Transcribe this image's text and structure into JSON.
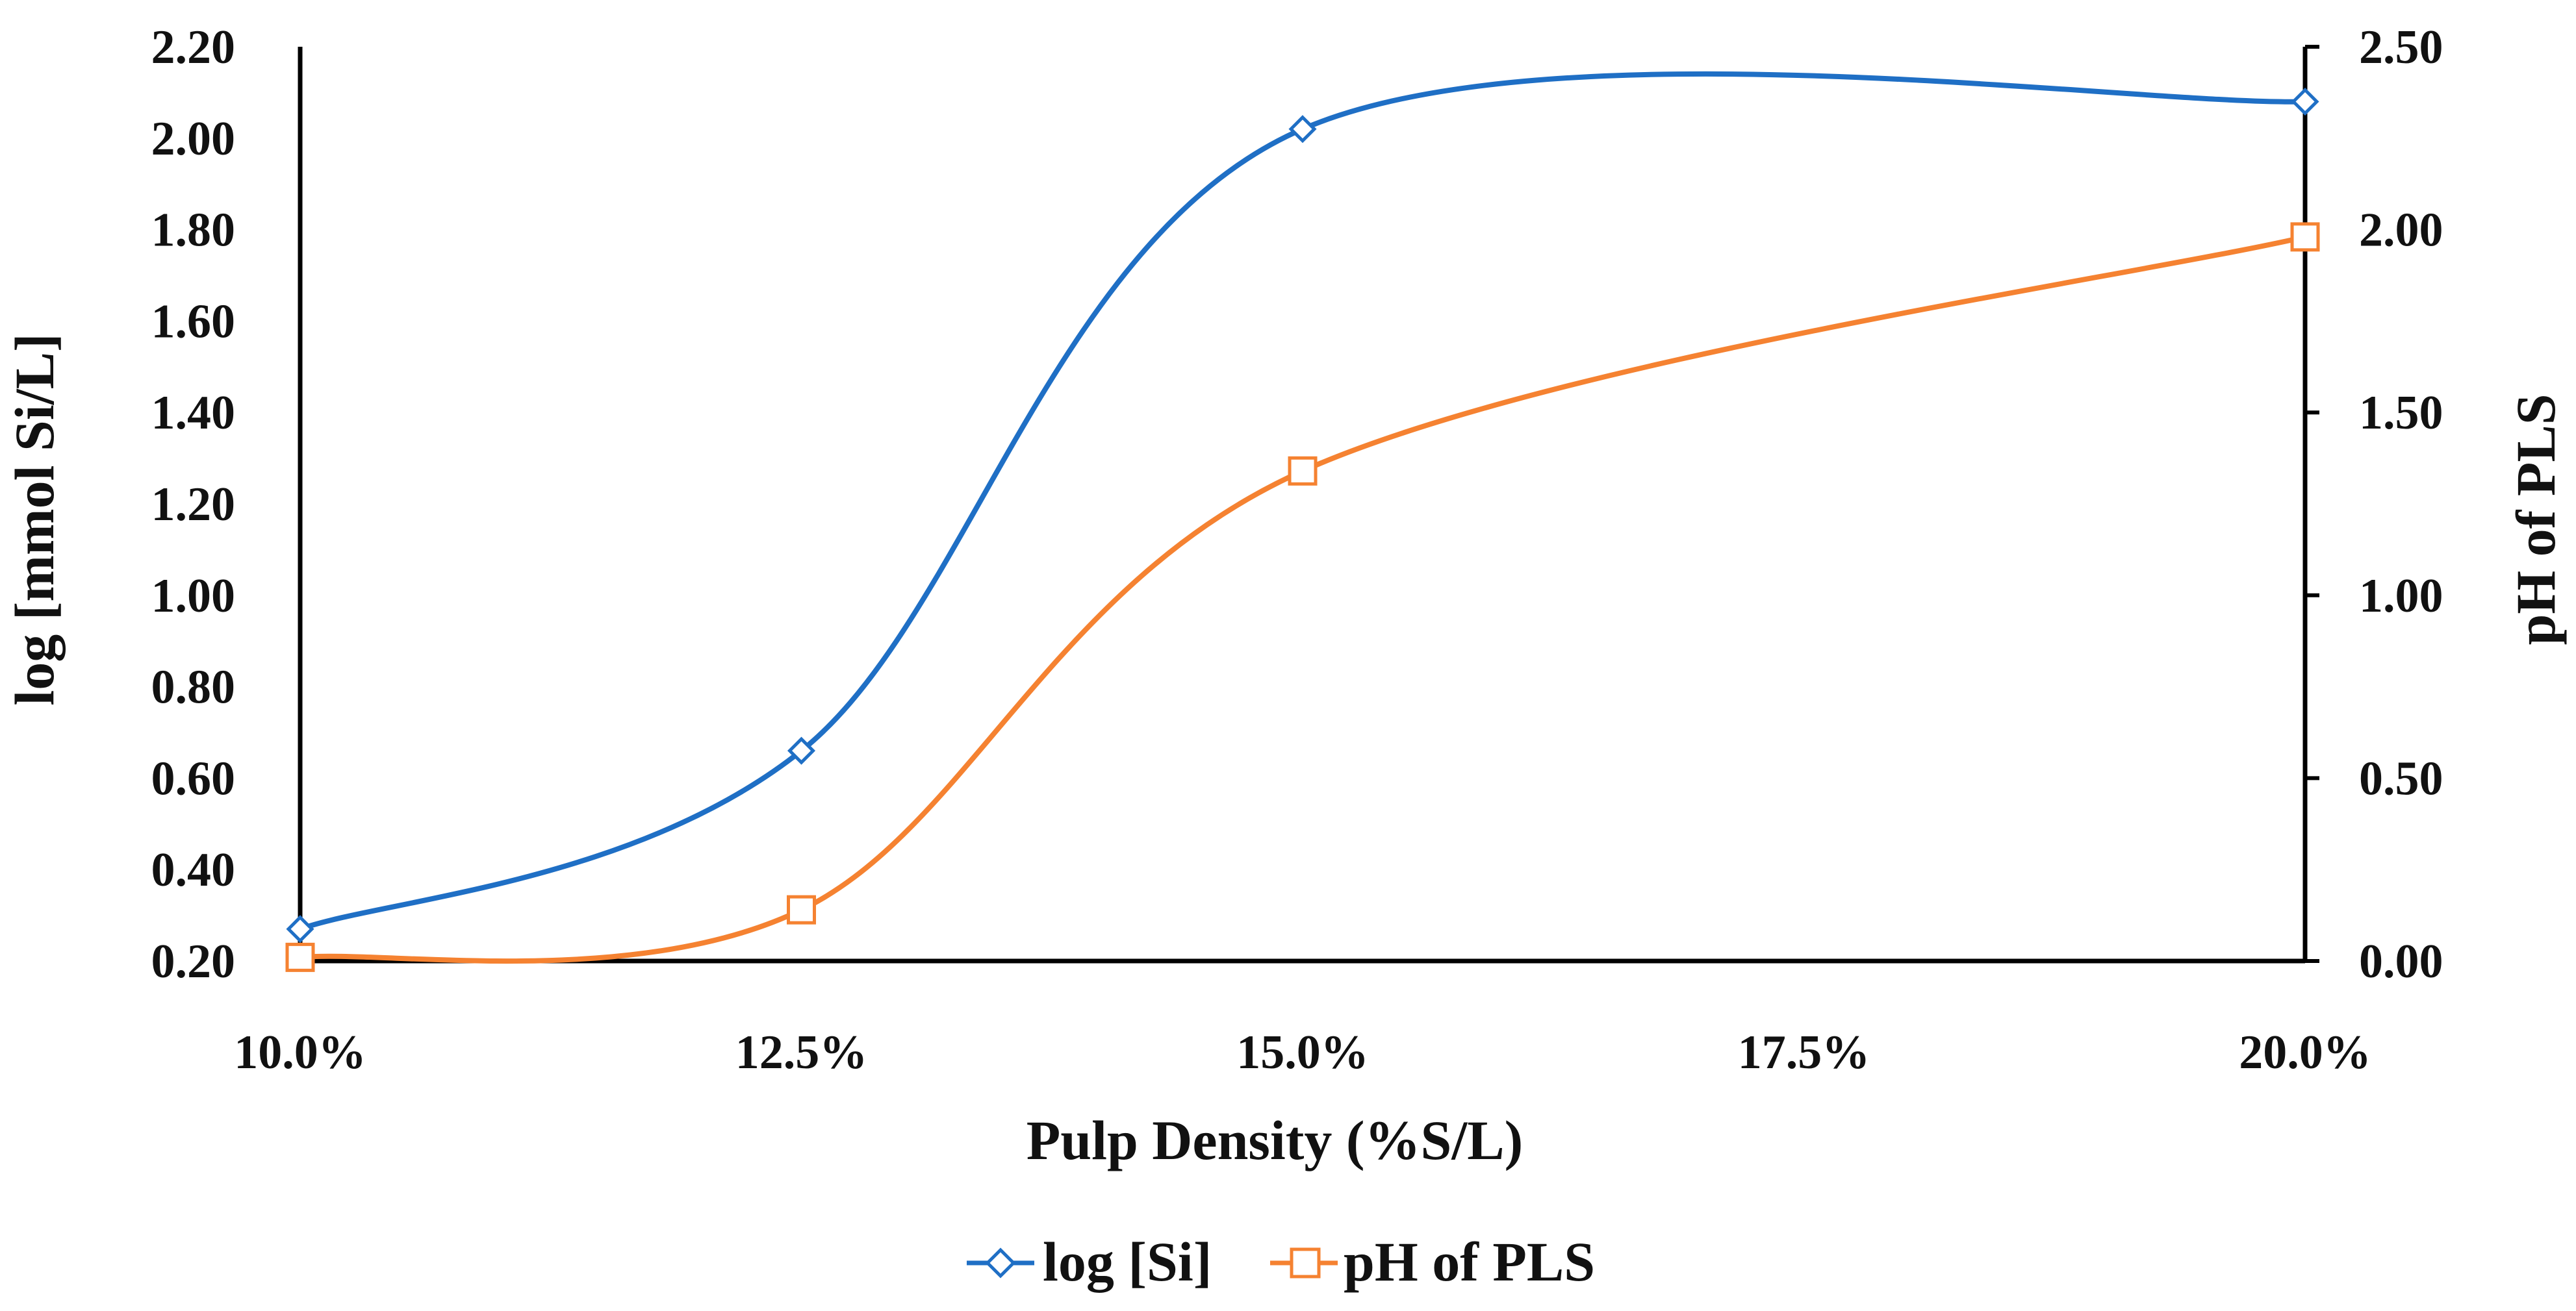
{
  "chart_data": {
    "type": "line",
    "smooth": true,
    "categories": [
      "10.0%",
      "12.5%",
      "15.0%",
      "17.5%",
      "20.0%"
    ],
    "x": [
      10.0,
      12.5,
      15.0,
      17.5,
      20.0
    ],
    "xlabel": "Pulp Density (%S/L)",
    "ylabel": "log [mmol Si/L]",
    "y2label": "pH of PLS",
    "ylim": [
      0.2,
      2.2
    ],
    "y2lim": [
      0.0,
      2.5
    ],
    "y_ticks": [
      "0.20",
      "0.40",
      "0.60",
      "0.80",
      "1.00",
      "1.20",
      "1.40",
      "1.60",
      "1.80",
      "2.00",
      "2.20"
    ],
    "y2_ticks": [
      "0.00",
      "0.50",
      "1.00",
      "1.50",
      "2.00",
      "2.50"
    ],
    "grid": false,
    "legend_position": "bottom",
    "series": [
      {
        "name": "log [Si]",
        "axis": "left",
        "color": "#1F6FC5",
        "marker": "diamond",
        "points": [
          [
            10.0,
            0.27
          ],
          [
            12.5,
            0.66
          ],
          [
            15.0,
            2.02
          ],
          [
            20.0,
            2.08
          ]
        ]
      },
      {
        "name": "pH of PLS",
        "axis": "right",
        "color": "#F58231",
        "marker": "square",
        "points": [
          [
            10.0,
            0.01
          ],
          [
            12.5,
            0.14
          ],
          [
            15.0,
            1.34
          ],
          [
            20.0,
            1.98
          ]
        ]
      }
    ]
  }
}
